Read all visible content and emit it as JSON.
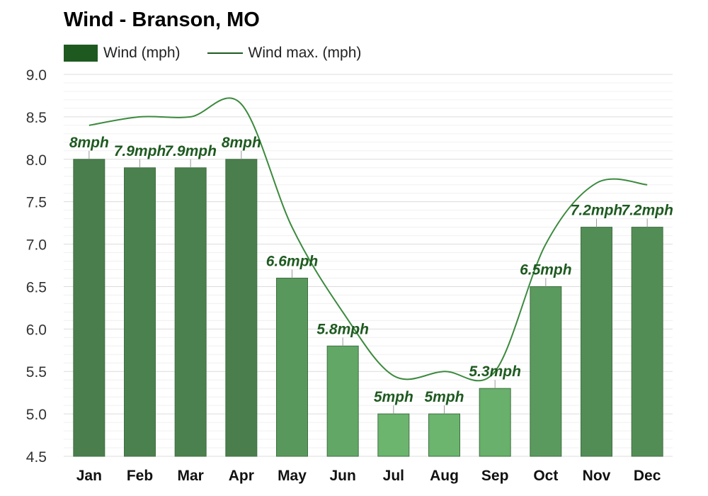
{
  "title": "Wind - Branson, MO",
  "legend": {
    "bar_label": "Wind (mph)",
    "line_label": "Wind max. (mph)"
  },
  "colors": {
    "bar_dark": "#4a7f4d",
    "bar_light": "#6bb56e",
    "line": "#3b8a3d",
    "label": "#1e5a20",
    "legend_bar": "#1e5a20",
    "legend_line": "#1e5a20",
    "grid": "#e6e6e6"
  },
  "chart_data": {
    "type": "bar",
    "title": "Wind - Branson, MO",
    "categories": [
      "Jan",
      "Feb",
      "Mar",
      "Apr",
      "May",
      "Jun",
      "Jul",
      "Aug",
      "Sep",
      "Oct",
      "Nov",
      "Dec"
    ],
    "series": [
      {
        "name": "Wind (mph)",
        "type": "bar",
        "values": [
          8,
          7.9,
          7.9,
          8,
          6.6,
          5.8,
          5,
          5,
          5.3,
          6.5,
          7.2,
          7.2
        ],
        "data_labels": [
          "8mph",
          "7.9mph",
          "7.9mph",
          "8mph",
          "6.6mph",
          "5.8mph",
          "5mph",
          "5mph",
          "5.3mph",
          "6.5mph",
          "7.2mph",
          "7.2mph"
        ]
      },
      {
        "name": "Wind max. (mph)",
        "type": "line",
        "values": [
          8.4,
          8.5,
          8.5,
          8.65,
          7.2,
          6.2,
          5.45,
          5.5,
          5.5,
          7.0,
          7.72,
          7.7
        ]
      }
    ],
    "ylim": [
      4.5,
      9.0
    ],
    "yticks": [
      "9.0",
      "8.5",
      "8.0",
      "7.5",
      "7.0",
      "6.5",
      "6.0",
      "5.5",
      "5.0",
      "4.5"
    ],
    "grid": true,
    "legend_position": "top-left"
  }
}
